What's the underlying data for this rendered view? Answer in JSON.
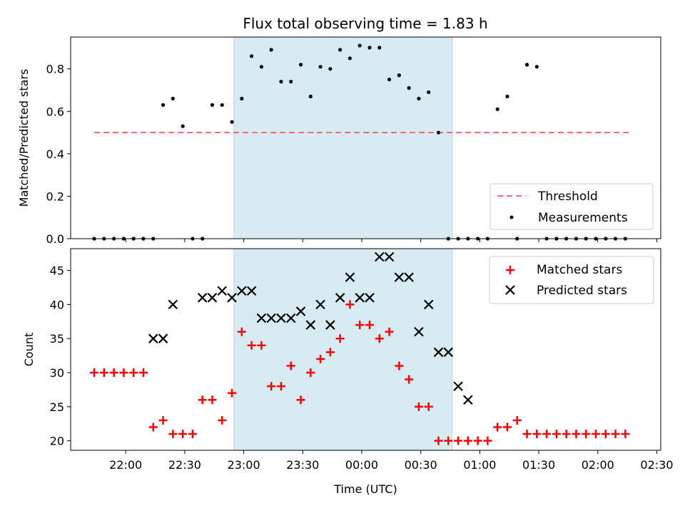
{
  "figure": {
    "title": "Flux total observing time = 1.83 h",
    "shaded_color": "#add8e6"
  },
  "chart_data": [
    {
      "type": "scatter",
      "title": "Flux total observing time = 1.83 h",
      "xlabel": "",
      "ylabel": "Matched/Predicted stars",
      "ylim": [
        0,
        0.95
      ],
      "yticks": [
        "0.0",
        "0.2",
        "0.4",
        "0.6",
        "0.8"
      ],
      "ytick_values": [
        0,
        0.2,
        0.4,
        0.6,
        0.8
      ],
      "xlim_minutes": [
        -30,
        270
      ],
      "shaded_span_minutes": [
        53,
        164
      ],
      "legend": {
        "placement": "bottom-right",
        "entries": [
          "Threshold",
          "Measurements"
        ]
      },
      "threshold": {
        "name": "Threshold",
        "value": 0.5,
        "x_minutes": [
          -18,
          254
        ],
        "color": "#ff6b6b"
      },
      "measurements": {
        "name": "Measurements",
        "color": "#000000",
        "x_minutes": [
          -18,
          -13,
          -8,
          -3,
          2,
          7,
          12,
          17,
          22,
          27,
          32,
          37,
          42,
          47,
          52,
          57,
          62,
          67,
          72,
          77,
          82,
          87,
          92,
          97,
          102,
          107,
          112,
          117,
          122,
          127,
          132,
          137,
          142,
          147,
          152,
          157,
          162,
          167,
          172,
          177,
          182,
          187,
          192,
          197,
          202,
          207,
          212,
          217,
          222,
          227,
          232,
          237,
          242,
          247,
          252
        ],
        "y": [
          0,
          0,
          0,
          0,
          0,
          0,
          0,
          0.63,
          0.66,
          0.53,
          0,
          0,
          0.63,
          0.63,
          0.55,
          0.66,
          0.86,
          0.81,
          0.89,
          0.74,
          0.74,
          0.82,
          0.67,
          0.81,
          0.8,
          0.89,
          0.85,
          0.91,
          0.9,
          0.9,
          0.75,
          0.77,
          0.71,
          0.66,
          0.69,
          0.5,
          0,
          0,
          0,
          0,
          0,
          0.61,
          0.67,
          0,
          0.82,
          0.81,
          0,
          0,
          0,
          0,
          0,
          0,
          0,
          0,
          0
        ]
      }
    },
    {
      "type": "scatter",
      "xlabel": "Time (UTC)",
      "ylabel": "Count",
      "ylim": [
        18.6,
        48.2
      ],
      "yticks": [
        "20",
        "25",
        "30",
        "35",
        "40",
        "45"
      ],
      "ytick_values": [
        20,
        25,
        30,
        35,
        40,
        45
      ],
      "xlim_minutes": [
        -30,
        270
      ],
      "xticks": [
        "22:00",
        "22:30",
        "23:00",
        "23:30",
        "00:00",
        "00:30",
        "01:00",
        "01:30",
        "02:00",
        "02:30"
      ],
      "xtick_minutes": [
        -2,
        28,
        58,
        88,
        118,
        148,
        178,
        208,
        238,
        268
      ],
      "shaded_span_minutes": [
        53,
        164
      ],
      "legend": {
        "placement": "top-right",
        "entries": [
          "Matched stars",
          "Predicted stars"
        ]
      },
      "x_minutes": [
        -18,
        -13,
        -8,
        -3,
        2,
        7,
        12,
        17,
        22,
        27,
        32,
        37,
        42,
        47,
        52,
        57,
        62,
        67,
        72,
        77,
        82,
        87,
        92,
        97,
        102,
        107,
        112,
        117,
        122,
        127,
        132,
        137,
        142,
        147,
        152,
        157,
        162,
        167,
        172,
        177,
        182,
        187,
        192,
        197,
        202,
        207,
        212,
        217,
        222,
        227,
        232,
        237,
        242,
        247,
        252
      ],
      "series": [
        {
          "name": "Matched stars",
          "marker": "plus",
          "color": "#ff0000",
          "values": [
            30,
            30,
            30,
            30,
            30,
            30,
            22,
            23,
            21,
            21,
            21,
            26,
            26,
            23,
            27,
            36,
            34,
            34,
            28,
            28,
            31,
            26,
            30,
            32,
            33,
            35,
            40,
            37,
            37,
            35,
            36,
            31,
            29,
            25,
            25,
            20,
            20,
            20,
            20,
            20,
            20,
            22,
            22,
            23,
            21,
            21,
            21,
            21,
            21,
            21,
            21,
            21,
            21,
            21,
            21
          ]
        },
        {
          "name": "Predicted stars",
          "marker": "x",
          "color": "#000000",
          "values": [
            null,
            null,
            null,
            null,
            null,
            null,
            35,
            35,
            40,
            null,
            null,
            41,
            41,
            42,
            41,
            42,
            42,
            38,
            38,
            38,
            38,
            39,
            37,
            40,
            37,
            41,
            44,
            41,
            41,
            47,
            47,
            44,
            44,
            36,
            40,
            33,
            33,
            28,
            26,
            null,
            null,
            null,
            null,
            null,
            null,
            null,
            null,
            null,
            null,
            null,
            null,
            null,
            null,
            null,
            null
          ]
        }
      ]
    }
  ]
}
